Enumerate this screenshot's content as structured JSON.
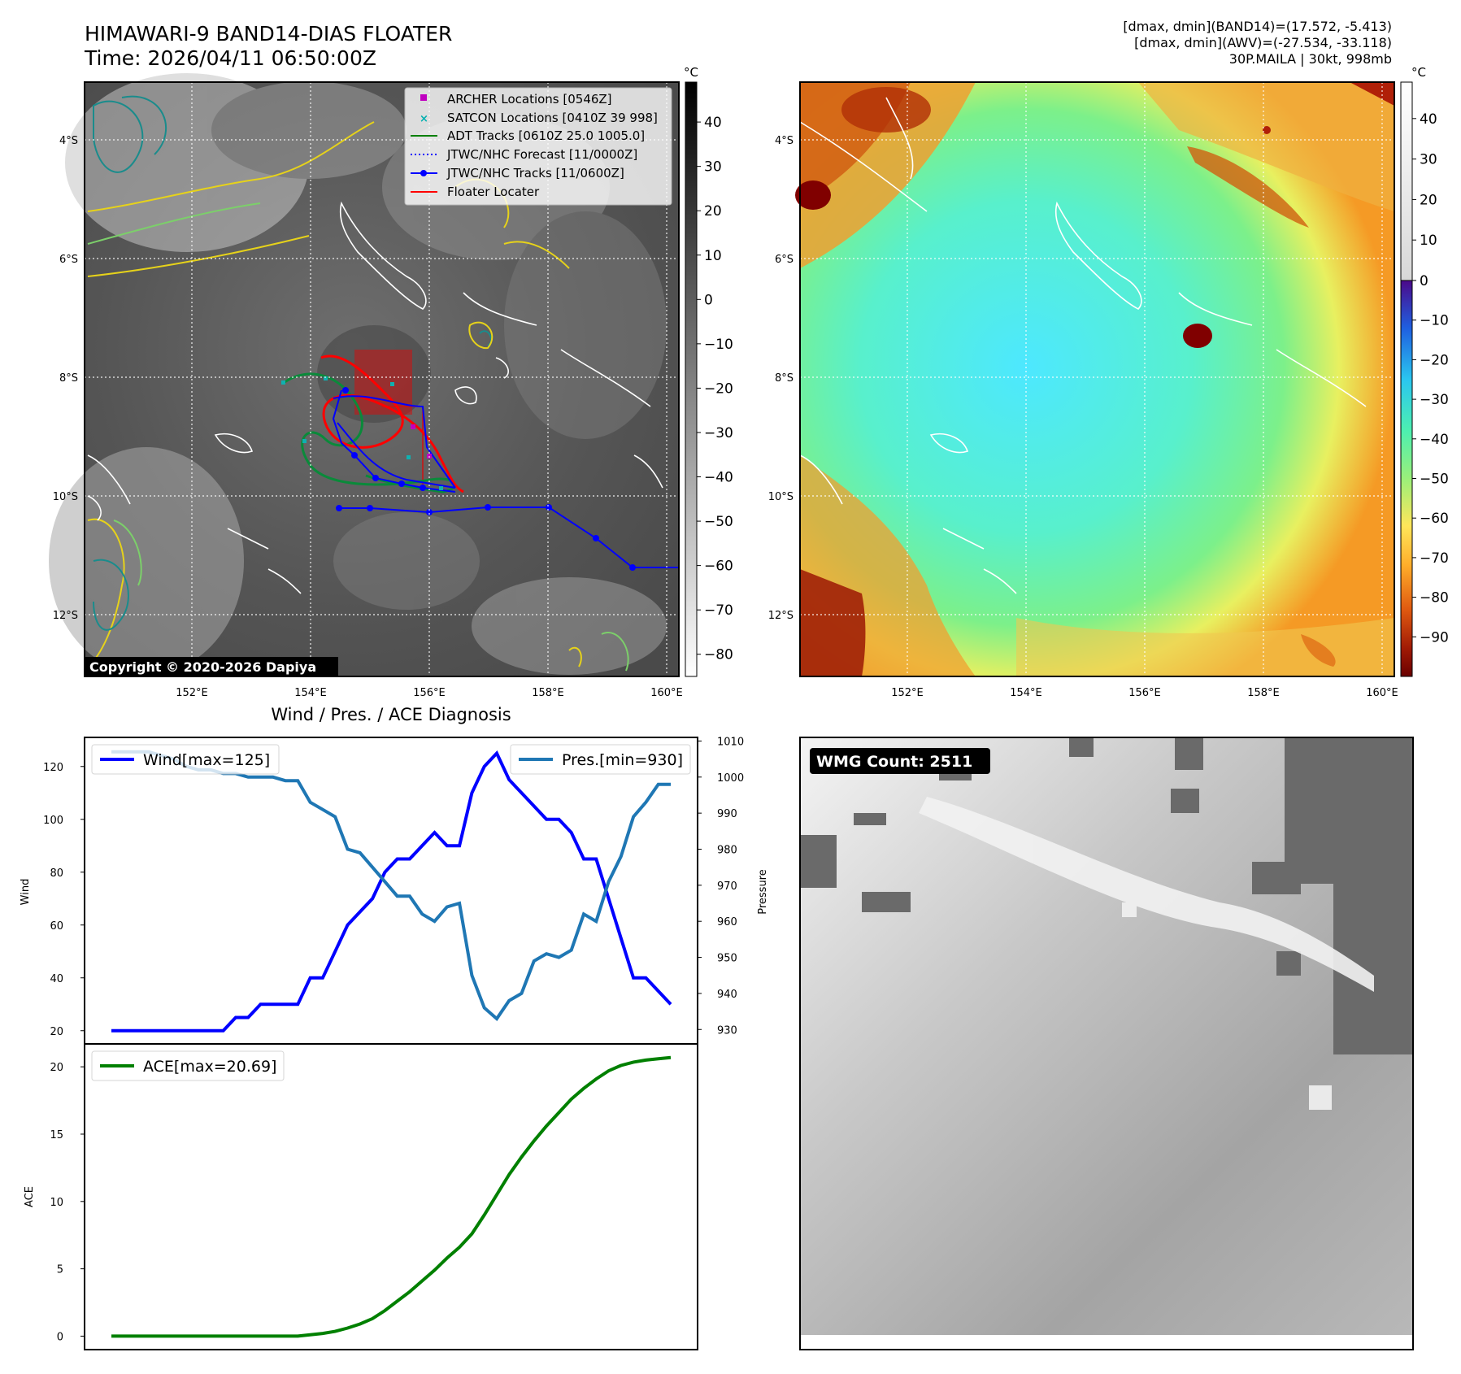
{
  "header": {
    "title_line1": "HIMAWARI-9 BAND14-DIAS FLOATER",
    "title_line2": "Time: 2026/04/11 06:50:00Z",
    "info_line1": "[dmax, dmin](BAND14)=(17.572, -5.413)",
    "info_line2": "[dmax, dmin](AWV)=(-27.534, -33.118)",
    "info_line3": "30P.MAILA | 30kt, 998mb"
  },
  "map": {
    "lat_labels": [
      "4°S",
      "6°S",
      "8°S",
      "10°S",
      "12°S"
    ],
    "lon_labels": [
      "152°E",
      "154°E",
      "156°E",
      "158°E",
      "160°E"
    ],
    "copyright": "Copyright © 2020-2026 Dapiya",
    "legend": [
      {
        "label": "ARCHER Locations [0546Z]",
        "color": "#c000c0",
        "marker": "square"
      },
      {
        "label": "SATCON Locations [0410Z 39 998]",
        "color": "#00b0b0",
        "marker": "x"
      },
      {
        "label": "ADT Tracks [0610Z 25.0 1005.0]",
        "color": "#008000",
        "marker": "line"
      },
      {
        "label": "JTWC/NHC Forecast [11/0000Z]",
        "color": "#0000ff",
        "marker": "dotted"
      },
      {
        "label": "JTWC/NHC Tracks [11/0600Z]",
        "color": "#0000ff",
        "marker": "line-dot"
      },
      {
        "label": "Floater Locater",
        "color": "#ff0000",
        "marker": "line"
      }
    ],
    "colorbar_unit": "°C",
    "band14_ticks": [
      "40",
      "30",
      "20",
      "10",
      "0",
      "−10",
      "−20",
      "−30",
      "−40",
      "−50",
      "−60",
      "−70",
      "−80"
    ],
    "awv_ticks": [
      "40",
      "30",
      "20",
      "10",
      "0",
      "−10",
      "−20",
      "−30",
      "−40",
      "−50",
      "−60",
      "−70",
      "−80",
      "−90"
    ]
  },
  "diagnosis": {
    "title": "Wind / Pres. / ACE Diagnosis",
    "wmg_label": "WMG Count: 2511"
  },
  "chart_data": [
    {
      "type": "line",
      "title": "Wind / Pres. / ACE Diagnosis",
      "xlabel": "",
      "series": [
        {
          "name": "Wind[max=125]",
          "axis": "left",
          "color": "#0000ff",
          "values": [
            20,
            20,
            20,
            20,
            20,
            20,
            20,
            20,
            20,
            20,
            25,
            25,
            30,
            30,
            30,
            30,
            40,
            40,
            50,
            60,
            65,
            70,
            80,
            85,
            85,
            90,
            95,
            90,
            90,
            110,
            120,
            125,
            115,
            110,
            105,
            100,
            100,
            95,
            85,
            85,
            70,
            55,
            40,
            40,
            35,
            30
          ]
        },
        {
          "name": "Pres.[min=930]",
          "axis": "right",
          "color": "#1f77b4",
          "values": [
            1007,
            1007,
            1007,
            1007,
            1006,
            1005,
            1003,
            1002,
            1002,
            1001,
            1001,
            1000,
            1000,
            1000,
            999,
            999,
            993,
            991,
            989,
            980,
            979,
            975,
            971,
            967,
            967,
            962,
            960,
            964,
            965,
            945,
            936,
            933,
            938,
            940,
            949,
            951,
            950,
            952,
            962,
            960,
            971,
            978,
            989,
            993,
            998,
            998
          ]
        }
      ],
      "ylabel_left": "Wind",
      "ylabel_right": "Pressure",
      "ylim_left": [
        15,
        131
      ],
      "ylim_right": [
        926,
        1011
      ],
      "yticks_left": [
        20,
        40,
        60,
        80,
        100,
        120
      ],
      "yticks_right": [
        930,
        940,
        950,
        960,
        970,
        980,
        990,
        1000,
        1010
      ]
    },
    {
      "type": "line",
      "title": "",
      "series": [
        {
          "name": "ACE[max=20.69]",
          "color": "#008000",
          "values": [
            0,
            0,
            0,
            0,
            0,
            0,
            0,
            0,
            0,
            0,
            0,
            0,
            0,
            0,
            0,
            0,
            0.1,
            0.2,
            0.35,
            0.6,
            0.9,
            1.3,
            1.9,
            2.6,
            3.3,
            4.1,
            4.9,
            5.8,
            6.6,
            7.6,
            9.0,
            10.5,
            12.0,
            13.3,
            14.5,
            15.6,
            16.6,
            17.6,
            18.4,
            19.1,
            19.7,
            20.1,
            20.35,
            20.5,
            20.6,
            20.69
          ]
        }
      ],
      "ylabel": "ACE",
      "ylim": [
        -1,
        21.7
      ],
      "yticks": [
        0,
        5,
        10,
        15,
        20
      ]
    }
  ]
}
